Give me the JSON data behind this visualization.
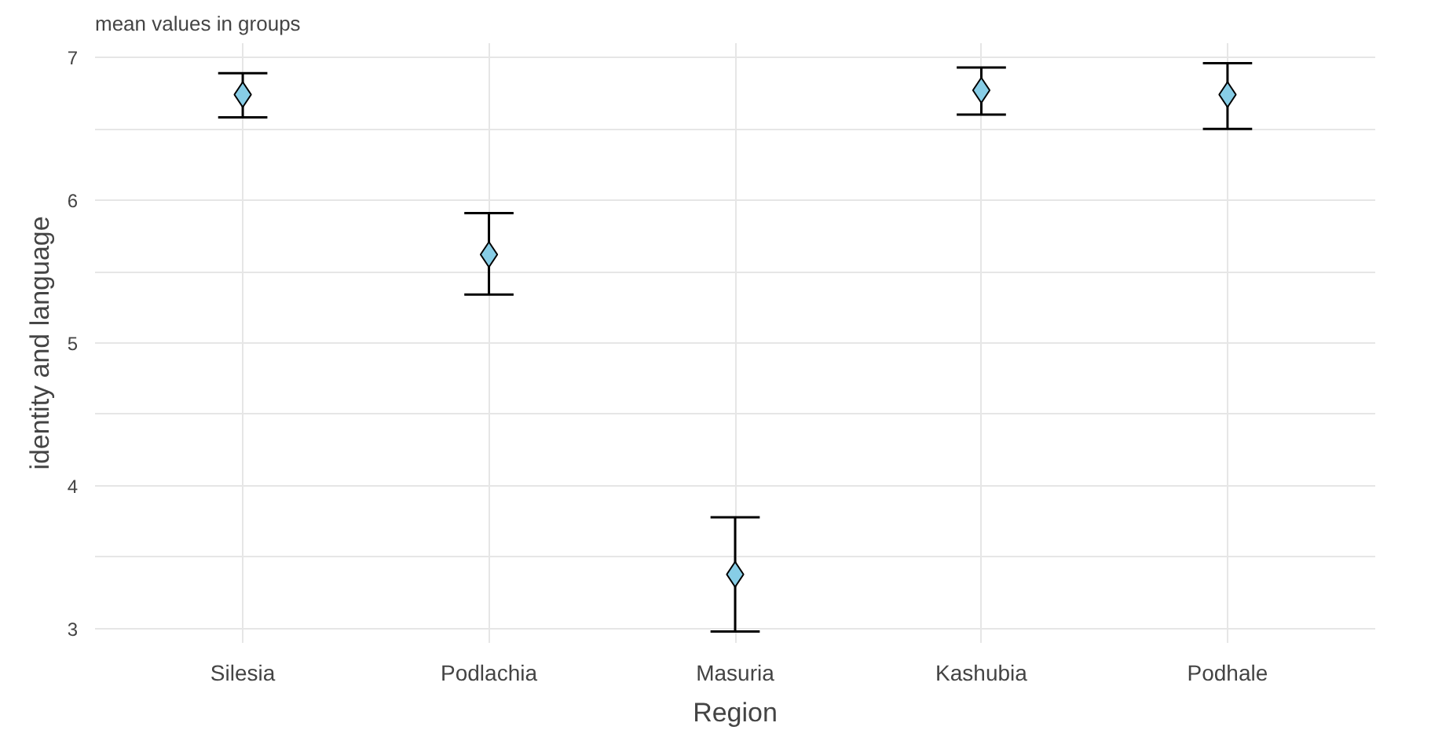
{
  "chart_data": {
    "type": "scatter",
    "title": "mean values in groups",
    "xlabel": "Region",
    "ylabel": "identity and language",
    "categories": [
      "Silesia",
      "Podlachia",
      "Masuria",
      "Kashubia",
      "Podhale"
    ],
    "series": [
      {
        "color": "#87cde6",
        "values": [
          6.74,
          5.62,
          3.38,
          6.77,
          6.74
        ],
        "errors": [
          [
            6.58,
            6.89
          ],
          [
            5.34,
            5.91
          ],
          [
            2.98,
            3.78
          ],
          [
            6.6,
            6.93
          ],
          [
            6.5,
            6.96
          ]
        ]
      }
    ],
    "ylim": [
      2.9,
      7.1
    ],
    "yticks": [
      3,
      {
        "value": 3.5,
        "label": null
      },
      4,
      {
        "value": 4.5,
        "label": null
      },
      5,
      {
        "value": 5.5,
        "label": null
      },
      6,
      {
        "value": 6.5,
        "label": null
      },
      7
    ],
    "grid": true,
    "marker": "diamond"
  }
}
